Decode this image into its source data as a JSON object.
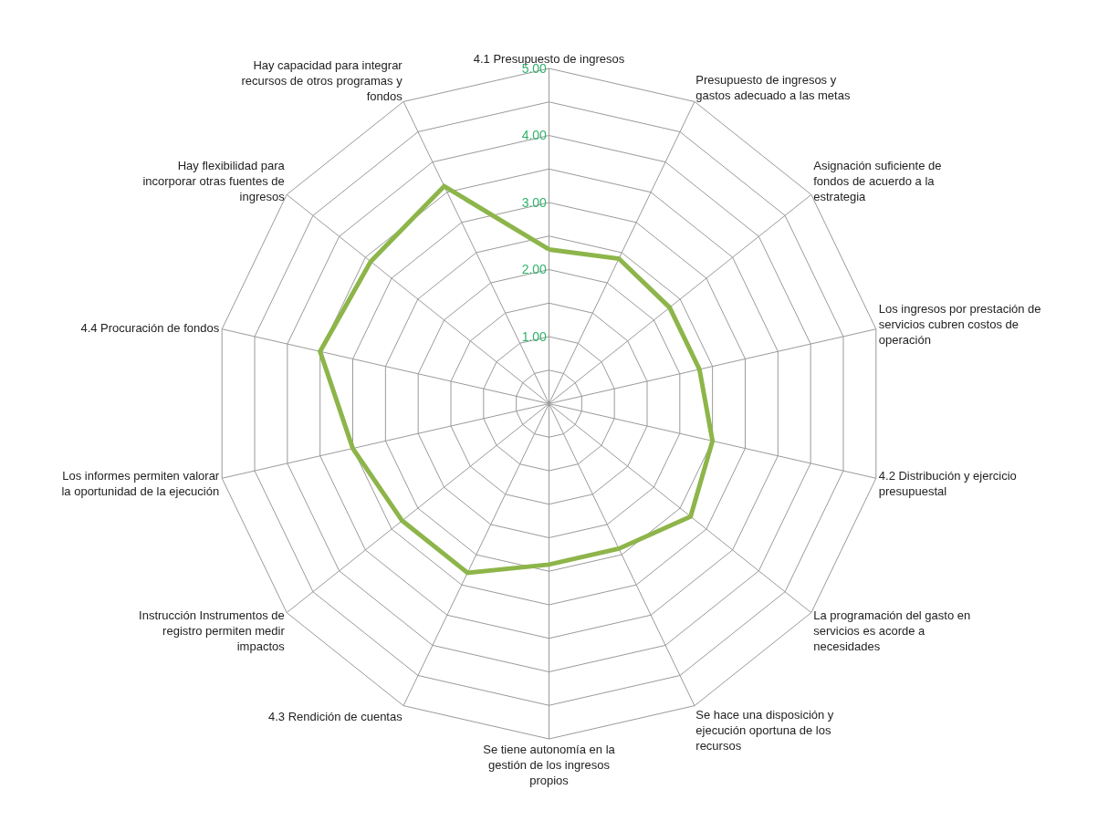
{
  "chart_data": {
    "type": "radar",
    "categories": [
      "4.1 Presupuesto de ingresos",
      "Presupuesto de ingresos y gastos adecuado a las metas",
      "Asignación suficiente de fondos de acuerdo a la estrategia",
      "Los ingresos por prestación de servicios cubren costos de operación",
      "4.2 Distribución y ejercicio presupuestal",
      "La programación del gasto en servicios es acorde a necesidades",
      "Se hace una disposición y ejecución oportuna de los recursos",
      "Se tiene autonomía en la gestión de los ingresos propios",
      "4.3 Rendición de cuentas",
      "Instrucción Instrumentos de registro permiten medir impactos",
      "Los informes permiten valorar la oportunidad de la ejecución",
      "4.4 Procuración de fondos",
      "Hay flexibilidad para incorporar otras fuentes de ingresos",
      "Hay capacidad para integrar recursos de otros programas y fondos"
    ],
    "series": [
      {
        "color": "#8db54a",
        "values": [
          2.3,
          2.4,
          2.3,
          2.3,
          2.5,
          2.7,
          2.4,
          2.4,
          2.8,
          2.8,
          3.0,
          3.5,
          3.4,
          3.6
        ]
      }
    ],
    "ylim": [
      0,
      5
    ],
    "yticks": [
      {
        "value": 1,
        "label": "1.00"
      },
      {
        "value": 2,
        "label": "2.00"
      },
      {
        "value": 3,
        "label": "3.00"
      },
      {
        "value": 4,
        "label": "4.00"
      },
      {
        "value": 5,
        "label": "5.00"
      }
    ],
    "legend": false,
    "marker": "none",
    "line_style": "solid"
  }
}
